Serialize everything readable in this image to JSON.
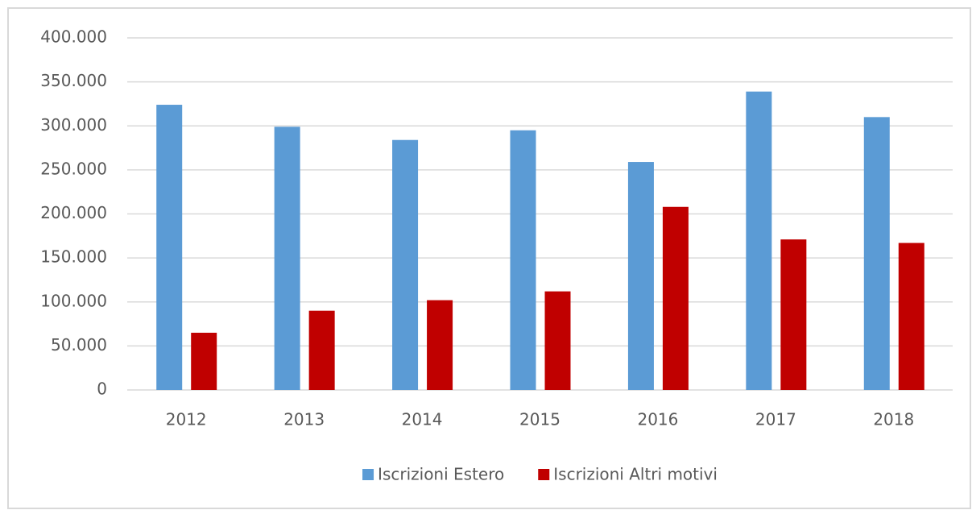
{
  "chart_data": {
    "type": "bar",
    "categories": [
      "2012",
      "2013",
      "2014",
      "2015",
      "2016",
      "2017",
      "2018"
    ],
    "series": [
      {
        "name": "Iscrizioni Estero",
        "color": "#5b9bd5",
        "values": [
          324000,
          299000,
          284000,
          295000,
          259000,
          339000,
          310000
        ]
      },
      {
        "name": "Iscrizioni Altri motivi",
        "color": "#c00000",
        "values": [
          65000,
          90000,
          102000,
          112000,
          208000,
          171000,
          167000
        ]
      }
    ],
    "ylim": [
      0,
      400000
    ],
    "yticks": [
      0,
      {
        "value": 50000,
        "label": "50.000"
      },
      {
        "value": 100000,
        "label": "100.000"
      },
      {
        "value": 150000,
        "label": "150.000"
      },
      {
        "value": 200000,
        "label": "200.000"
      },
      {
        "value": 250000,
        "label": "250.000"
      },
      {
        "value": 300000,
        "label": "300.000"
      },
      {
        "value": 350000,
        "label": "350.000"
      },
      {
        "value": 400000,
        "label": "400.000"
      }
    ],
    "grid": true,
    "legend": "bottom"
  }
}
